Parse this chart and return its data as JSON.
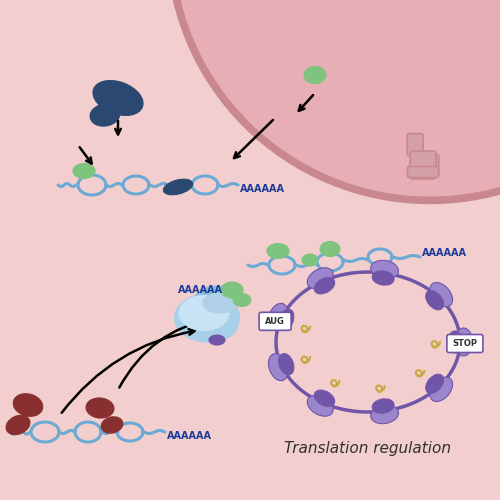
{
  "bg_light": "#f2cece",
  "bg_nucleus": "#e8aeb5",
  "nucleus_edge": "#c98890",
  "blue_strand": "#6aaad4",
  "dark_blue_protein": "#2b4870",
  "green_protein": "#7ec47e",
  "purple_ribosome_light": "#9b85cc",
  "purple_ribosome_dark": "#7055a8",
  "light_blue_large": "#a8d0e8",
  "light_blue_small": "#c8e4f4",
  "dark_red_protein": "#883030",
  "gold_trna": "#c8a840",
  "pink_pore": "#d4a0a8",
  "text_blue": "#1a3a9a",
  "text_dark": "#303030",
  "title": "Translation regulation",
  "label_aaaaaa": "AAAAAA",
  "label_stop": "STOP",
  "label_aug": "AUG"
}
